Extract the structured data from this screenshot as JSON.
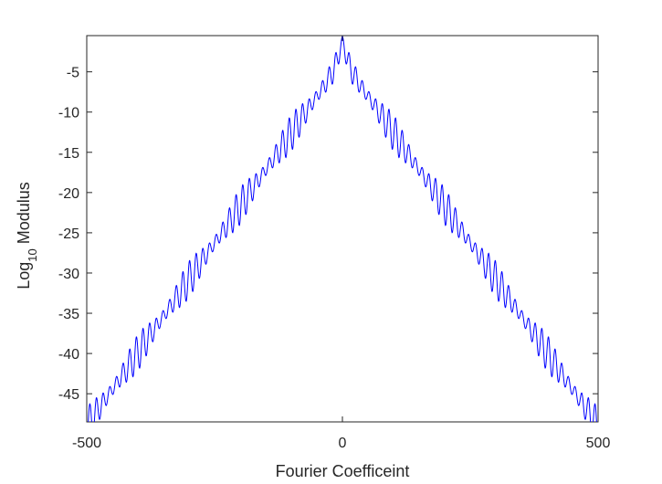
{
  "chart_data": {
    "type": "line",
    "xlabel": "Fourier Coefficeint",
    "ylabel_main": "Log",
    "ylabel_sub": "10",
    "ylabel_rest": " Modulus",
    "xlim": [
      -500,
      500
    ],
    "ylim": [
      -48.5,
      -0.5
    ],
    "xticks": [
      -500,
      0,
      500
    ],
    "yticks": [
      -45,
      -40,
      -35,
      -30,
      -25,
      -20,
      -15,
      -10,
      -5
    ],
    "grid": false,
    "line_color": "#0000ff",
    "envelope": {
      "peak": [
        0,
        -0.5
      ],
      "left_end": [
        -500,
        -46
      ],
      "right_end": [
        500,
        -46
      ]
    },
    "ripple": {
      "period": 13,
      "amplitude": 1.5,
      "beat_period": 100,
      "beat_amplitude": 1.5
    },
    "series": [
      {
        "values_described_by": "envelope+ripple"
      }
    ]
  }
}
